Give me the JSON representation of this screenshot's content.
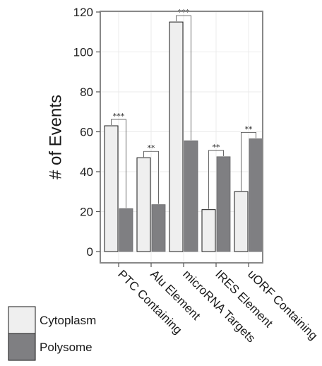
{
  "chart_data": {
    "type": "bar",
    "ylabel": "# of Events",
    "xlabel": "",
    "ylim": [
      0,
      120
    ],
    "yticks": [
      "0",
      "20",
      "40",
      "60",
      "80",
      "100",
      "120"
    ],
    "categories": [
      "PTC Containing",
      "Alu Element",
      "microRNA Targets",
      "IRES Element",
      "uORF Containing"
    ],
    "series": [
      {
        "name": "Cytoplasm",
        "color": "#efefef",
        "values": [
          63,
          47,
          115,
          21,
          30
        ]
      },
      {
        "name": "Polysome",
        "color": "#7f7f82",
        "values": [
          21.5,
          23.5,
          55.5,
          47.5,
          56.5
        ]
      }
    ],
    "significance": [
      "***",
      "**",
      "***",
      "**",
      "**"
    ],
    "grid": true,
    "legend_position": "bottom-left"
  }
}
